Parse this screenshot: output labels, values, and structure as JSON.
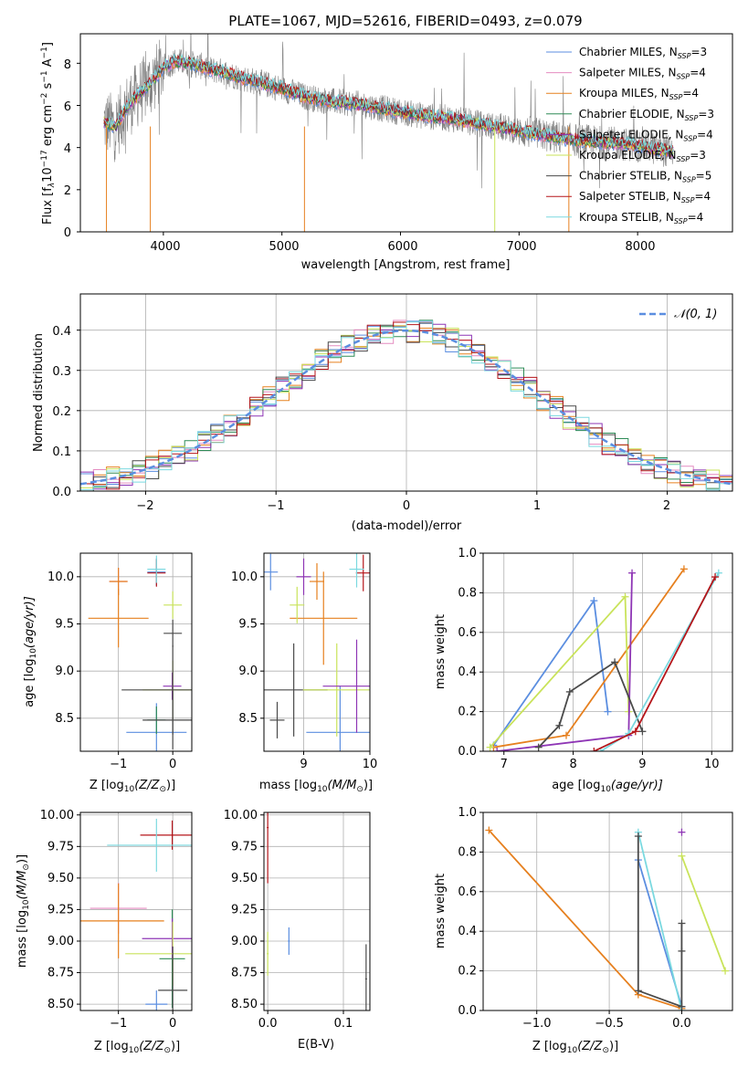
{
  "colors": {
    "chabrier_miles": "#5b8ee0",
    "salpeter_miles": "#e48bc0",
    "kroupa_miles": "#e6801f",
    "chabrier_elodie": "#2e8b57",
    "salpeter_elodie": "#8e35b5",
    "kroupa_elodie": "#c9e35a",
    "chabrier_stelib": "#4a4a4a",
    "salpeter_stelib": "#b5151a",
    "kroupa_stelib": "#7bd9e0",
    "data": "#808080",
    "normal": "#5b8ee0"
  },
  "spectrum": {
    "title": "PLATE=1067, MJD=52616, FIBERID=0493, z=0.079",
    "xlabel": "wavelength [Angstrom, rest frame]",
    "ylabel_main": "Flux [f",
    "ylabel_tail": "10",
    "ylabel_sup1": "−17",
    "ylabel_mid": " erg cm",
    "ylabel_sup2": "−2",
    "ylabel_mid2": " s",
    "ylabel_sup3": "−1",
    "ylabel_end": " A",
    "ylabel_sup4": "−1",
    "ylabel_close": "]",
    "xticks": [
      "4000",
      "5000",
      "6000",
      "7000",
      "8000"
    ],
    "yticks": [
      "0",
      "2",
      "4",
      "6",
      "8"
    ],
    "legend": [
      {
        "name": "Chabrier MILES, N",
        "n": "=3"
      },
      {
        "name": "Salpeter MILES, N",
        "n": "=4"
      },
      {
        "name": "Kroupa MILES, N",
        "n": "=4"
      },
      {
        "name": "Chabrier ELODIE, N",
        "n": "=3"
      },
      {
        "name": "Salpeter ELODIE, N",
        "n": "=4"
      },
      {
        "name": "Kroupa ELODIE, N",
        "n": "=3"
      },
      {
        "name": "Chabrier STELIB, N",
        "n": "=5"
      },
      {
        "name": "Salpeter STELIB, N",
        "n": "=4"
      },
      {
        "name": "Kroupa STELIB, N",
        "n": "=4"
      }
    ],
    "legend_sub": "SSP"
  },
  "residuals": {
    "xlabel": "(data-model)/error",
    "ylabel": "Normed distribution",
    "xticks": [
      "−2",
      "−1",
      "0",
      "1",
      "2"
    ],
    "yticks": [
      "0.0",
      "0.1",
      "0.2",
      "0.3",
      "0.4"
    ],
    "legend": "𝒩(0, 1)"
  },
  "panels": {
    "age_z": {
      "xlabel": "Z [log",
      "xlabel_sub": "10",
      "xlabel_end": "(Z/Z",
      "xlabel_sun": "⊙",
      "xlabel_close": ")]",
      "ylabel": "age  [log",
      "ylabel_sub": "10",
      "ylabel_end": "(age/yr)]",
      "xticks": [
        "−1",
        "0"
      ],
      "yticks": [
        "8.5",
        "9.0",
        "9.5",
        "10.0"
      ]
    },
    "age_mass": {
      "xlabel": "mass [log",
      "xlabel_sub": "10",
      "xlabel_end": "(M/M",
      "xlabel_sun": "⊙",
      "xlabel_close": ")]",
      "xticks": [
        "9",
        "10"
      ],
      "yticks": [
        "8.5",
        "9.0",
        "9.5",
        "10.0"
      ]
    },
    "mw_age": {
      "xlabel": "age  [log",
      "xlabel_sub": "10",
      "xlabel_end": "(age/yr)]",
      "ylabel": "mass weight",
      "xticks": [
        "7",
        "8",
        "9",
        "10"
      ],
      "yticks": [
        "0.0",
        "0.2",
        "0.4",
        "0.6",
        "0.8",
        "1.0"
      ]
    },
    "mass_z": {
      "xlabel": "Z [log",
      "xlabel_sub": "10",
      "xlabel_end": "(Z/Z",
      "xlabel_sun": "⊙",
      "xlabel_close": ")]",
      "ylabel": "mass [log",
      "ylabel_sub": "10",
      "ylabel_end": "(M/M",
      "ylabel_sun": "⊙",
      "ylabel_close": ")]",
      "xticks": [
        "−1",
        "0"
      ],
      "yticks": [
        "8.50",
        "8.75",
        "9.00",
        "9.25",
        "9.50",
        "9.75",
        "10.00"
      ]
    },
    "mass_ebv": {
      "xlabel": "E(B-V)",
      "xticks": [
        "0.0",
        "0.1"
      ],
      "yticks": [
        "8.50",
        "8.75",
        "9.00",
        "9.25",
        "9.50",
        "9.75",
        "10.00"
      ]
    },
    "mw_z": {
      "xlabel": "Z [log",
      "xlabel_sub": "10",
      "xlabel_end": "(Z/Z",
      "xlabel_sun": "⊙",
      "xlabel_close": ")]",
      "ylabel": "mass weight",
      "xticks": [
        "−1.0",
        "−0.5",
        "0.0"
      ],
      "yticks": [
        "0.0",
        "0.2",
        "0.4",
        "0.6",
        "0.8",
        "1.0"
      ]
    }
  },
  "chart_data": [
    {
      "type": "line",
      "title": "PLATE=1067, MJD=52616, FIBERID=0493, z=0.079",
      "xlabel": "wavelength [Angstrom, rest frame]",
      "ylabel": "Flux [f_λ 10^-17 erg cm^-2 s^-1 A^-1]",
      "xlim": [
        3300,
        8800
      ],
      "ylim": [
        0,
        9.4
      ],
      "continuum": {
        "x": [
          3500,
          3600,
          3700,
          3800,
          3900,
          4000,
          4100,
          4200,
          4300,
          4400,
          4500,
          4600,
          4800,
          5000,
          5200,
          5400,
          5600,
          5800,
          6000,
          6200,
          6400,
          6600,
          6800,
          7000,
          7200,
          7400,
          7600,
          7800,
          8000,
          8200,
          8300
        ],
        "y": [
          5.2,
          5.0,
          6.0,
          6.6,
          7.1,
          7.8,
          8.1,
          8.0,
          7.9,
          7.7,
          7.6,
          7.4,
          7.1,
          6.8,
          6.4,
          6.2,
          6.1,
          5.9,
          5.7,
          5.5,
          5.4,
          5.2,
          5.0,
          4.8,
          4.6,
          4.4,
          4.3,
          4.2,
          4.1,
          3.9,
          3.8
        ]
      },
      "legend_location": "upper right"
    },
    {
      "type": "bar",
      "xlabel": "(data-model)/error",
      "ylabel": "Normed distribution",
      "xlim": [
        -2.5,
        2.5
      ],
      "ylim": [
        0,
        0.49
      ],
      "bin_width": 0.1,
      "reference_curve": "N(0,1)",
      "legend_location": "upper right"
    },
    {
      "type": "scatter",
      "xlabel": "Z [log10(Z/Z⊙)]",
      "ylabel": "age [log10(age/yr)]",
      "xlim": [
        -1.7,
        0.35
      ],
      "ylim": [
        8.15,
        10.25
      ],
      "series": [
        {
          "name": "Chabrier MILES",
          "z": [
            -0.3,
            -0.3
          ],
          "age": [
            10.05,
            8.35
          ]
        },
        {
          "name": "Salpeter MILES",
          "z": [
            -1.0
          ],
          "age": [
            9.95
          ]
        },
        {
          "name": "Kroupa MILES",
          "z": [
            -1.0,
            -1.0
          ],
          "age": [
            9.95,
            9.56
          ]
        },
        {
          "name": "Chabrier ELODIE",
          "z": [
            -0.3
          ],
          "age": [
            8.48
          ]
        },
        {
          "name": "Salpeter ELODIE",
          "z": [
            -0.01
          ],
          "age": [
            8.84
          ]
        },
        {
          "name": "Kroupa ELODIE",
          "z": [
            0.0,
            0.0
          ],
          "age": [
            9.7,
            8.8
          ]
        },
        {
          "name": "Chabrier STELIB",
          "z": [
            0.0,
            0.0,
            0.0
          ],
          "age": [
            9.4,
            8.48,
            8.8
          ]
        },
        {
          "name": "Salpeter STELIB",
          "z": [
            -0.3
          ],
          "age": [
            10.04
          ]
        },
        {
          "name": "Kroupa STELIB",
          "z": [
            -0.3
          ],
          "age": [
            10.08
          ]
        }
      ]
    },
    {
      "type": "scatter",
      "xlabel": "mass [log10(M/M⊙)]",
      "xlim": [
        8.4,
        10.0
      ],
      "ylim": [
        8.15,
        10.25
      ],
      "series": [
        {
          "name": "Chabrier MILES",
          "mass": [
            8.5,
            9.55
          ],
          "age": [
            10.05,
            8.35
          ]
        },
        {
          "name": "Kroupa MILES",
          "mass": [
            9.2,
            9.3
          ],
          "age": [
            9.95,
            9.56
          ]
        },
        {
          "name": "Chabrier STELIB",
          "mass": [
            8.6,
            8.85
          ],
          "age": [
            8.48,
            8.8
          ]
        },
        {
          "name": "Kroupa ELODIE",
          "mass": [
            8.9,
            9.5
          ],
          "age": [
            9.7,
            8.8
          ]
        },
        {
          "name": "Salpeter ELODIE",
          "mass": [
            9.0,
            9.8
          ],
          "age": [
            10.0,
            8.84
          ]
        },
        {
          "name": "Salpeter STELIB",
          "mass": [
            9.9
          ],
          "age": [
            10.04
          ]
        },
        {
          "name": "Kroupa STELIB",
          "mass": [
            9.8
          ],
          "age": [
            10.08
          ]
        }
      ]
    },
    {
      "type": "line",
      "xlabel": "age [log10(age/yr)]",
      "ylabel": "mass weight",
      "xlim": [
        6.7,
        10.3
      ],
      "ylim": [
        0,
        1
      ],
      "series": [
        {
          "name": "Chabrier MILES",
          "age": [
            6.85,
            8.3,
            8.5
          ],
          "weight": [
            0.03,
            0.76,
            0.2
          ]
        },
        {
          "name": "Kroupa MILES",
          "age": [
            6.85,
            7.9,
            9.6
          ],
          "weight": [
            0.02,
            0.08,
            0.92
          ]
        },
        {
          "name": "Kroupa ELODIE",
          "age": [
            6.8,
            8.75,
            8.8
          ],
          "weight": [
            0.02,
            0.78,
            0.2
          ]
        },
        {
          "name": "Salpeter ELODIE",
          "age": [
            6.9,
            8.8,
            8.85
          ],
          "weight": [
            0.0,
            0.08,
            0.9
          ]
        },
        {
          "name": "Chabrier STELIB",
          "age": [
            7.5,
            7.8,
            7.95,
            8.6,
            9.0
          ],
          "weight": [
            0.02,
            0.13,
            0.3,
            0.45,
            0.1
          ]
        },
        {
          "name": "Kroupa STELIB",
          "age": [
            8.4,
            8.8,
            10.1
          ],
          "weight": [
            0.0,
            0.09,
            0.9
          ]
        },
        {
          "name": "Salpeter STELIB",
          "age": [
            8.3,
            8.9,
            10.05
          ],
          "weight": [
            0.0,
            0.1,
            0.88
          ]
        }
      ]
    },
    {
      "type": "scatter",
      "xlabel": "Z [log10(Z/Z⊙)]",
      "ylabel": "mass [log10(M/M⊙)]",
      "xlim": [
        -1.7,
        0.35
      ],
      "ylim": [
        8.45,
        10.02
      ],
      "series": [
        {
          "name": "Chabrier MILES",
          "z": [
            -0.3
          ],
          "mass": [
            8.5
          ]
        },
        {
          "name": "Salpeter MILES",
          "z": [
            -1.0
          ],
          "mass": [
            9.26
          ]
        },
        {
          "name": "Kroupa MILES",
          "z": [
            -1.0
          ],
          "mass": [
            9.16
          ]
        },
        {
          "name": "Chabrier ELODIE",
          "z": [
            -0.01
          ],
          "mass": [
            8.86
          ]
        },
        {
          "name": "Salpeter ELODIE",
          "z": [
            -0.01
          ],
          "mass": [
            9.02
          ]
        },
        {
          "name": "Kroupa ELODIE",
          "z": [
            0.0
          ],
          "mass": [
            8.9
          ]
        },
        {
          "name": "Chabrier STELIB",
          "z": [
            0.0
          ],
          "mass": [
            8.61
          ]
        },
        {
          "name": "Salpeter STELIB",
          "z": [
            -0.01
          ],
          "mass": [
            9.84
          ]
        },
        {
          "name": "Kroupa STELIB",
          "z": [
            -0.3
          ],
          "mass": [
            9.76
          ]
        }
      ]
    },
    {
      "type": "scatter",
      "xlabel": "E(B-V)",
      "xlim": [
        -0.005,
        0.135
      ],
      "ylim": [
        8.45,
        10.02
      ],
      "series": [
        {
          "name": "Chabrier MILES",
          "ebv": [
            0.028
          ],
          "mass": [
            9.0
          ]
        },
        {
          "name": "Chabrier STELIB",
          "ebv": [
            0.13
          ],
          "mass": [
            8.7
          ]
        },
        {
          "name": "Salpeter STELIB",
          "ebv": [
            0.0
          ],
          "mass": [
            9.9
          ]
        },
        {
          "name": "Kroupa ELODIE",
          "ebv": [
            0.0
          ],
          "mass": [
            8.9
          ]
        }
      ]
    },
    {
      "type": "line",
      "xlabel": "Z [log10(Z/Z⊙)]",
      "ylabel": "mass weight",
      "xlim": [
        -1.37,
        0.35
      ],
      "ylim": [
        0,
        1
      ],
      "series": [
        {
          "name": "Kroupa MILES",
          "z": [
            -1.33,
            -0.3,
            0.0
          ],
          "weight": [
            0.91,
            0.08,
            0.01
          ]
        },
        {
          "name": "Chabrier MILES",
          "z": [
            -0.3,
            0.0
          ],
          "weight": [
            0.76,
            0.02
          ]
        },
        {
          "name": "Kroupa STELIB",
          "z": [
            -0.3,
            0.0
          ],
          "weight": [
            0.9,
            0.0
          ]
        },
        {
          "name": "Chabrier STELIB",
          "z": [
            -0.3,
            -0.3,
            0.0,
            0.0,
            0.0
          ],
          "weight": [
            0.88,
            0.1,
            0.02,
            0.3,
            0.44
          ]
        },
        {
          "name": "Kroupa ELODIE",
          "z": [
            0.0,
            0.3
          ],
          "weight": [
            0.78,
            0.2
          ]
        },
        {
          "name": "Salpeter ELODIE",
          "z": [
            0.0
          ],
          "weight": [
            0.9
          ]
        }
      ]
    }
  ]
}
